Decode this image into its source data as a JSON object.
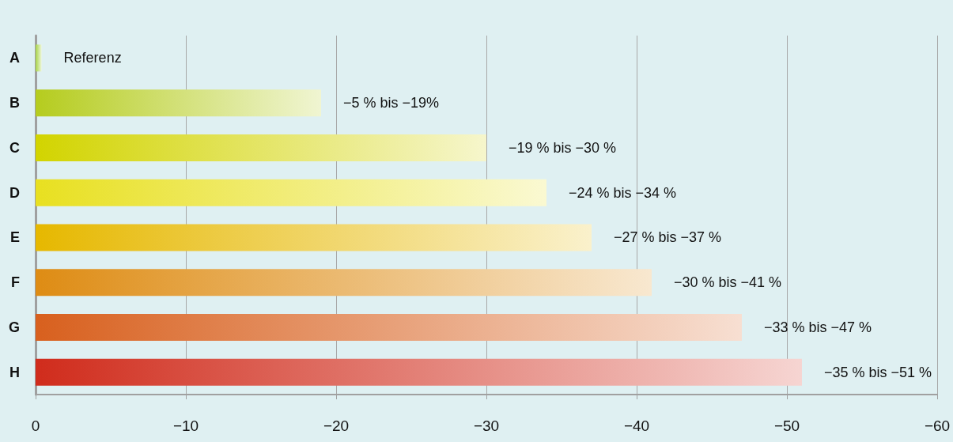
{
  "chart_data": {
    "type": "bar",
    "orientation": "horizontal",
    "categories": [
      "A",
      "B",
      "C",
      "D",
      "E",
      "F",
      "G",
      "H"
    ],
    "values": [
      -0.4,
      -19,
      -30,
      -34,
      -37,
      -41,
      -47,
      -51
    ],
    "colors": [
      "#a8d448",
      "#b5cc1e",
      "#d2d400",
      "#e8e020",
      "#e6b800",
      "#de8c14",
      "#d8601e",
      "#d02c1c"
    ],
    "value_labels": [
      "Referenz",
      "−5 % bis −19%",
      "−19 % bis −30 %",
      "−24 % bis −34 %",
      "−27 % bis −37 %",
      "−30 % bis −41 %",
      "−33 % bis −47 %",
      "−35 % bis −51 %"
    ],
    "xlim": [
      0,
      -60
    ],
    "xticks": [
      0,
      {
        "value": -10,
        "label": "−10"
      },
      {
        "value": -20,
        "label": "−20"
      },
      {
        "value": -30,
        "label": "−30"
      },
      {
        "value": -40,
        "label": "−40"
      },
      {
        "value": -50,
        "label": "−50"
      },
      {
        "value": -60,
        "label": "−60"
      }
    ],
    "grid": "x"
  }
}
